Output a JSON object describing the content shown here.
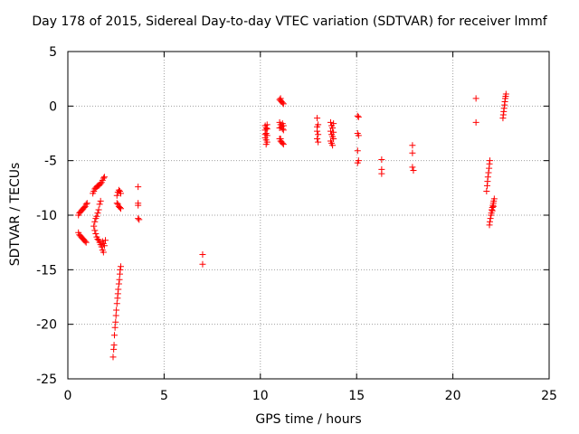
{
  "chart_data": {
    "type": "scatter",
    "title": "Day 178 of 2015, Sidereal Day-to-day VTEC variation (SDTVAR) for receiver lmmf",
    "xlabel": "GPS time / hours",
    "ylabel": "SDTVAR / TECUs",
    "xlim": [
      0,
      25
    ],
    "ylim": [
      -25,
      5
    ],
    "xticks": [
      0,
      5,
      10,
      15,
      20,
      25
    ],
    "yticks": [
      -25,
      -20,
      -15,
      -10,
      -5,
      0,
      5
    ],
    "grid": true,
    "marker": "+",
    "color": "#ff0000",
    "series": [
      {
        "name": "SDTVAR",
        "points": [
          [
            0.55,
            -11.6
          ],
          [
            0.6,
            -11.8
          ],
          [
            0.65,
            -11.9
          ],
          [
            0.7,
            -12.0
          ],
          [
            0.75,
            -12.1
          ],
          [
            0.8,
            -12.2
          ],
          [
            0.85,
            -12.3
          ],
          [
            0.9,
            -12.4
          ],
          [
            0.95,
            -12.5
          ],
          [
            0.55,
            -10.0
          ],
          [
            0.6,
            -9.8
          ],
          [
            0.65,
            -9.7
          ],
          [
            0.7,
            -9.6
          ],
          [
            0.75,
            -9.5
          ],
          [
            0.8,
            -9.4
          ],
          [
            0.85,
            -9.3
          ],
          [
            0.9,
            -9.2
          ],
          [
            0.95,
            -9.0
          ],
          [
            1.0,
            -8.9
          ],
          [
            1.3,
            -8.0
          ],
          [
            1.35,
            -7.8
          ],
          [
            1.4,
            -7.6
          ],
          [
            1.45,
            -7.5
          ],
          [
            1.5,
            -7.4
          ],
          [
            1.55,
            -7.3
          ],
          [
            1.6,
            -7.3
          ],
          [
            1.65,
            -7.2
          ],
          [
            1.7,
            -7.1
          ],
          [
            1.75,
            -7.0
          ],
          [
            1.8,
            -6.8
          ],
          [
            1.85,
            -6.6
          ],
          [
            1.9,
            -6.5
          ],
          [
            1.35,
            -11.0
          ],
          [
            1.4,
            -11.4
          ],
          [
            1.45,
            -11.7
          ],
          [
            1.5,
            -12.0
          ],
          [
            1.55,
            -12.2
          ],
          [
            1.6,
            -12.3
          ],
          [
            1.65,
            -12.5
          ],
          [
            1.7,
            -12.7
          ],
          [
            1.75,
            -12.9
          ],
          [
            1.8,
            -13.2
          ],
          [
            1.85,
            -13.4
          ],
          [
            1.4,
            -10.6
          ],
          [
            1.45,
            -10.3
          ],
          [
            1.5,
            -10.1
          ],
          [
            1.55,
            -9.8
          ],
          [
            1.6,
            -9.5
          ],
          [
            1.65,
            -9.0
          ],
          [
            1.7,
            -8.7
          ],
          [
            1.8,
            -12.4
          ],
          [
            1.85,
            -12.6
          ],
          [
            1.9,
            -12.8
          ],
          [
            1.95,
            -12.3
          ],
          [
            2.35,
            -23.0
          ],
          [
            2.38,
            -22.3
          ],
          [
            2.4,
            -21.9
          ],
          [
            2.42,
            -21.0
          ],
          [
            2.45,
            -20.3
          ],
          [
            2.48,
            -19.8
          ],
          [
            2.5,
            -19.2
          ],
          [
            2.52,
            -18.7
          ],
          [
            2.55,
            -18.1
          ],
          [
            2.58,
            -17.6
          ],
          [
            2.6,
            -17.2
          ],
          [
            2.62,
            -16.8
          ],
          [
            2.65,
            -16.3
          ],
          [
            2.68,
            -15.9
          ],
          [
            2.7,
            -15.4
          ],
          [
            2.72,
            -15.0
          ],
          [
            2.75,
            -14.7
          ],
          [
            2.55,
            -8.2
          ],
          [
            2.6,
            -7.9
          ],
          [
            2.65,
            -7.7
          ],
          [
            2.7,
            -7.8
          ],
          [
            2.75,
            -8.0
          ],
          [
            2.55,
            -8.9
          ],
          [
            2.6,
            -9.0
          ],
          [
            2.65,
            -9.2
          ],
          [
            2.7,
            -9.3
          ],
          [
            2.75,
            -9.4
          ],
          [
            3.65,
            -7.4
          ],
          [
            3.65,
            -8.9
          ],
          [
            3.65,
            -9.1
          ],
          [
            3.65,
            -10.3
          ],
          [
            3.7,
            -10.4
          ],
          [
            7.0,
            -13.6
          ],
          [
            7.0,
            -14.5
          ],
          [
            10.25,
            -1.8
          ],
          [
            10.3,
            -2.0
          ],
          [
            10.35,
            -1.7
          ],
          [
            10.25,
            -2.2
          ],
          [
            10.3,
            -2.5
          ],
          [
            10.35,
            -2.7
          ],
          [
            10.25,
            -2.9
          ],
          [
            10.3,
            -3.1
          ],
          [
            10.35,
            -3.3
          ],
          [
            10.3,
            -3.5
          ],
          [
            10.25,
            -2.6
          ],
          [
            10.35,
            -2.1
          ],
          [
            11.0,
            0.6
          ],
          [
            11.05,
            0.5
          ],
          [
            11.1,
            0.4
          ],
          [
            11.15,
            0.3
          ],
          [
            11.2,
            0.2
          ],
          [
            11.05,
            0.7
          ],
          [
            11.0,
            -1.5
          ],
          [
            11.05,
            -1.7
          ],
          [
            11.1,
            -1.9
          ],
          [
            11.15,
            -2.1
          ],
          [
            11.2,
            -2.2
          ],
          [
            11.0,
            -2.0
          ],
          [
            11.15,
            -1.6
          ],
          [
            11.2,
            -1.8
          ],
          [
            11.0,
            -3.0
          ],
          [
            11.05,
            -3.2
          ],
          [
            11.1,
            -3.3
          ],
          [
            11.15,
            -3.4
          ],
          [
            11.2,
            -3.5
          ],
          [
            11.05,
            -3.0
          ],
          [
            12.95,
            -1.1
          ],
          [
            13.0,
            -1.7
          ],
          [
            12.95,
            -2.3
          ],
          [
            13.0,
            -2.6
          ],
          [
            12.95,
            -3.0
          ],
          [
            13.0,
            -3.3
          ],
          [
            12.95,
            -1.9
          ],
          [
            13.65,
            -1.5
          ],
          [
            13.7,
            -1.8
          ],
          [
            13.75,
            -2.0
          ],
          [
            13.8,
            -1.6
          ],
          [
            13.65,
            -2.3
          ],
          [
            13.7,
            -2.6
          ],
          [
            13.75,
            -2.8
          ],
          [
            13.8,
            -3.0
          ],
          [
            13.65,
            -3.2
          ],
          [
            13.7,
            -3.4
          ],
          [
            13.75,
            -3.6
          ],
          [
            13.8,
            -2.4
          ],
          [
            15.05,
            -0.9
          ],
          [
            15.1,
            -1.0
          ],
          [
            15.05,
            -2.5
          ],
          [
            15.1,
            -2.7
          ],
          [
            15.05,
            -4.1
          ],
          [
            15.1,
            -5.0
          ],
          [
            15.05,
            -5.2
          ],
          [
            16.3,
            -4.9
          ],
          [
            16.3,
            -5.8
          ],
          [
            16.3,
            -6.2
          ],
          [
            17.9,
            -3.6
          ],
          [
            17.9,
            -4.3
          ],
          [
            17.9,
            -5.6
          ],
          [
            17.95,
            -5.9
          ],
          [
            21.2,
            0.7
          ],
          [
            21.2,
            -1.5
          ],
          [
            21.75,
            -7.8
          ],
          [
            21.78,
            -7.3
          ],
          [
            21.8,
            -6.9
          ],
          [
            21.82,
            -6.5
          ],
          [
            21.85,
            -6.1
          ],
          [
            21.88,
            -5.7
          ],
          [
            21.9,
            -5.3
          ],
          [
            21.92,
            -5.0
          ],
          [
            21.9,
            -10.9
          ],
          [
            21.92,
            -10.6
          ],
          [
            21.95,
            -10.3
          ],
          [
            21.98,
            -10.0
          ],
          [
            22.0,
            -9.8
          ],
          [
            22.02,
            -9.5
          ],
          [
            22.05,
            -9.3
          ],
          [
            22.08,
            -9.1
          ],
          [
            22.1,
            -8.9
          ],
          [
            22.12,
            -8.7
          ],
          [
            22.15,
            -8.5
          ],
          [
            22.05,
            -9.6
          ],
          [
            22.1,
            -9.2
          ],
          [
            22.6,
            -1.1
          ],
          [
            22.62,
            -0.8
          ],
          [
            22.64,
            -0.5
          ],
          [
            22.66,
            -0.2
          ],
          [
            22.68,
            0.1
          ],
          [
            22.7,
            0.4
          ],
          [
            22.72,
            0.7
          ],
          [
            22.74,
            0.9
          ],
          [
            22.76,
            1.1
          ]
        ]
      }
    ]
  }
}
